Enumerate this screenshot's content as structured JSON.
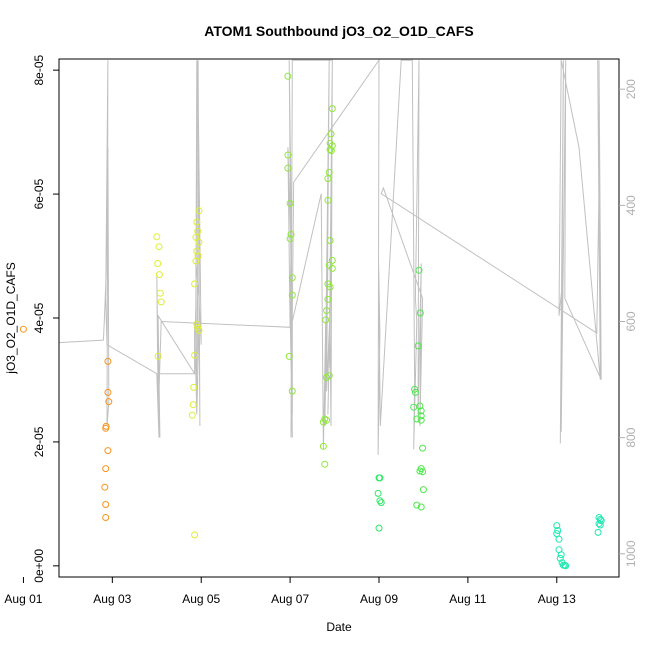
{
  "chart_data": {
    "type": "scatter",
    "title": "ATOM1 Southbound jO3_O2_O1D_CAFS",
    "xlabel": "Date",
    "ylabel": "jO3_O2_O1D_CAFS",
    "x_ticks": [
      "Aug 01",
      "Aug 03",
      "Aug 05",
      "Aug 07",
      "Aug 09",
      "Aug 11",
      "Aug 13"
    ],
    "y_ticks": [
      "0e+00",
      "2e-05",
      "4e-05",
      "6e-05",
      "8e-05"
    ],
    "y2_ticks": [
      "200",
      "400",
      "600",
      "800",
      "1000"
    ],
    "xlim_days": [
      0.8,
      13.4
    ],
    "ylim": [
      -1.8e-06,
      8.18e-05
    ],
    "y2lim": [
      1040,
      148
    ],
    "grid": false,
    "points": [
      {
        "x": 0.0,
        "y": 3.82e-05,
        "color": "#f7941d"
      },
      {
        "x": 1.9,
        "y": 3.3e-05,
        "color": "#f7941d"
      },
      {
        "x": 1.9,
        "y": 2.8e-05,
        "color": "#f7941d"
      },
      {
        "x": 1.92,
        "y": 2.65e-05,
        "color": "#f7941d"
      },
      {
        "x": 1.86,
        "y": 2.25e-05,
        "color": "#f7941d"
      },
      {
        "x": 1.85,
        "y": 2.22e-05,
        "color": "#f7941d"
      },
      {
        "x": 1.9,
        "y": 1.86e-05,
        "color": "#f7941d"
      },
      {
        "x": 1.85,
        "y": 1.57e-05,
        "color": "#f7941d"
      },
      {
        "x": 1.83,
        "y": 1.27e-05,
        "color": "#f7941d"
      },
      {
        "x": 1.85,
        "y": 9.9e-06,
        "color": "#f7941d"
      },
      {
        "x": 1.85,
        "y": 7.8e-06,
        "color": "#f7941d"
      },
      {
        "x": 3.0,
        "y": 5.31e-05,
        "color": "#ddee33"
      },
      {
        "x": 3.05,
        "y": 5.15e-05,
        "color": "#ddee33"
      },
      {
        "x": 3.02,
        "y": 4.88e-05,
        "color": "#ddee33"
      },
      {
        "x": 3.06,
        "y": 4.7e-05,
        "color": "#ddee33"
      },
      {
        "x": 3.08,
        "y": 4.4e-05,
        "color": "#ddee33"
      },
      {
        "x": 3.1,
        "y": 4.26e-05,
        "color": "#ddee33"
      },
      {
        "x": 3.03,
        "y": 3.38e-05,
        "color": "#ddee33"
      },
      {
        "x": 3.95,
        "y": 5.73e-05,
        "color": "#ddee33"
      },
      {
        "x": 3.9,
        "y": 5.55e-05,
        "color": "#ddee33"
      },
      {
        "x": 3.92,
        "y": 5.4e-05,
        "color": "#ddee33"
      },
      {
        "x": 3.88,
        "y": 5.3e-05,
        "color": "#ddee33"
      },
      {
        "x": 3.95,
        "y": 5.22e-05,
        "color": "#ddee33"
      },
      {
        "x": 3.9,
        "y": 5.08e-05,
        "color": "#ddee33"
      },
      {
        "x": 3.93,
        "y": 5e-05,
        "color": "#ddee33"
      },
      {
        "x": 3.88,
        "y": 4.92e-05,
        "color": "#ddee33"
      },
      {
        "x": 3.85,
        "y": 4.55e-05,
        "color": "#ddee33"
      },
      {
        "x": 3.9,
        "y": 3.9e-05,
        "color": "#ddee33"
      },
      {
        "x": 3.92,
        "y": 3.85e-05,
        "color": "#ddee33"
      },
      {
        "x": 3.95,
        "y": 3.8e-05,
        "color": "#ddee33"
      },
      {
        "x": 3.85,
        "y": 3.4e-05,
        "color": "#ddee33"
      },
      {
        "x": 3.83,
        "y": 2.88e-05,
        "color": "#ddee33"
      },
      {
        "x": 3.82,
        "y": 2.6e-05,
        "color": "#ddee33"
      },
      {
        "x": 3.8,
        "y": 2.43e-05,
        "color": "#ddee33"
      },
      {
        "x": 3.85,
        "y": 5e-06,
        "color": "#ddee33"
      },
      {
        "x": 5.95,
        "y": 7.9e-05,
        "color": "#8ee83a"
      },
      {
        "x": 5.95,
        "y": 6.63e-05,
        "color": "#8ee83a"
      },
      {
        "x": 5.95,
        "y": 6.42e-05,
        "color": "#8ee83a"
      },
      {
        "x": 6.0,
        "y": 5.85e-05,
        "color": "#8ee83a"
      },
      {
        "x": 6.02,
        "y": 5.35e-05,
        "color": "#8ee83a"
      },
      {
        "x": 6.0,
        "y": 5.28e-05,
        "color": "#8ee83a"
      },
      {
        "x": 6.05,
        "y": 4.65e-05,
        "color": "#8ee83a"
      },
      {
        "x": 6.05,
        "y": 4.37e-05,
        "color": "#8ee83a"
      },
      {
        "x": 5.98,
        "y": 3.38e-05,
        "color": "#8ee83a"
      },
      {
        "x": 6.05,
        "y": 2.82e-05,
        "color": "#8ee83a"
      },
      {
        "x": 6.95,
        "y": 7.38e-05,
        "color": "#8ee83a"
      },
      {
        "x": 6.92,
        "y": 6.97e-05,
        "color": "#8ee83a"
      },
      {
        "x": 6.9,
        "y": 6.82e-05,
        "color": "#8ee83a"
      },
      {
        "x": 6.95,
        "y": 6.78e-05,
        "color": "#8ee83a"
      },
      {
        "x": 6.9,
        "y": 6.72e-05,
        "color": "#8ee83a"
      },
      {
        "x": 6.93,
        "y": 6.7e-05,
        "color": "#8ee83a"
      },
      {
        "x": 6.88,
        "y": 6.35e-05,
        "color": "#8ee83a"
      },
      {
        "x": 6.85,
        "y": 6.25e-05,
        "color": "#8ee83a"
      },
      {
        "x": 6.85,
        "y": 5.9e-05,
        "color": "#8ee83a"
      },
      {
        "x": 6.9,
        "y": 5.25e-05,
        "color": "#8ee83a"
      },
      {
        "x": 6.95,
        "y": 4.93e-05,
        "color": "#8ee83a"
      },
      {
        "x": 6.88,
        "y": 4.85e-05,
        "color": "#8ee83a"
      },
      {
        "x": 6.95,
        "y": 4.8e-05,
        "color": "#8ee83a"
      },
      {
        "x": 6.85,
        "y": 4.55e-05,
        "color": "#8ee83a"
      },
      {
        "x": 6.9,
        "y": 4.5e-05,
        "color": "#8ee83a"
      },
      {
        "x": 6.85,
        "y": 4.3e-05,
        "color": "#8ee83a"
      },
      {
        "x": 6.82,
        "y": 4.12e-05,
        "color": "#8ee83a"
      },
      {
        "x": 6.8,
        "y": 3.97e-05,
        "color": "#8ee83a"
      },
      {
        "x": 6.88,
        "y": 3.07e-05,
        "color": "#8ee83a"
      },
      {
        "x": 6.82,
        "y": 3.04e-05,
        "color": "#8ee83a"
      },
      {
        "x": 6.78,
        "y": 2.37e-05,
        "color": "#8ee83a"
      },
      {
        "x": 6.82,
        "y": 2.35e-05,
        "color": "#8ee83a"
      },
      {
        "x": 6.75,
        "y": 2.32e-05,
        "color": "#8ee83a"
      },
      {
        "x": 6.75,
        "y": 1.93e-05,
        "color": "#8ee83a"
      },
      {
        "x": 6.78,
        "y": 1.64e-05,
        "color": "#8ee83a"
      },
      {
        "x": 8.9,
        "y": 4.77e-05,
        "color": "#4de84a"
      },
      {
        "x": 8.93,
        "y": 4.08e-05,
        "color": "#4de84a"
      },
      {
        "x": 8.88,
        "y": 3.55e-05,
        "color": "#4de84a"
      },
      {
        "x": 8.8,
        "y": 2.85e-05,
        "color": "#4de84a"
      },
      {
        "x": 8.82,
        "y": 2.8e-05,
        "color": "#4de84a"
      },
      {
        "x": 8.78,
        "y": 2.56e-05,
        "color": "#4de84a"
      },
      {
        "x": 8.92,
        "y": 2.58e-05,
        "color": "#4de84a"
      },
      {
        "x": 8.95,
        "y": 2.5e-05,
        "color": "#4de84a"
      },
      {
        "x": 8.95,
        "y": 2.42e-05,
        "color": "#4de84a"
      },
      {
        "x": 8.85,
        "y": 2.37e-05,
        "color": "#4de84a"
      },
      {
        "x": 8.95,
        "y": 2.35e-05,
        "color": "#4de84a"
      },
      {
        "x": 8.98,
        "y": 1.9e-05,
        "color": "#4de84a"
      },
      {
        "x": 8.95,
        "y": 1.57e-05,
        "color": "#4de84a"
      },
      {
        "x": 8.92,
        "y": 1.53e-05,
        "color": "#4de84a"
      },
      {
        "x": 8.98,
        "y": 1.52e-05,
        "color": "#4de84a"
      },
      {
        "x": 9.0,
        "y": 1.23e-05,
        "color": "#4de84a"
      },
      {
        "x": 8.85,
        "y": 9.8e-06,
        "color": "#4de84a"
      },
      {
        "x": 8.95,
        "y": 9.5e-06,
        "color": "#4de84a"
      },
      {
        "x": 8.0,
        "y": 1.42e-05,
        "color": "#2ee865"
      },
      {
        "x": 8.02,
        "y": 1.42e-05,
        "color": "#2ee865"
      },
      {
        "x": 7.98,
        "y": 1.17e-05,
        "color": "#2ee865"
      },
      {
        "x": 8.02,
        "y": 1.05e-05,
        "color": "#2ee865"
      },
      {
        "x": 8.05,
        "y": 1.02e-05,
        "color": "#2ee865"
      },
      {
        "x": 8.0,
        "y": 6.1e-06,
        "color": "#2ee865"
      },
      {
        "x": 12.0,
        "y": 6.5e-06,
        "color": "#1de8b0"
      },
      {
        "x": 12.02,
        "y": 5.7e-06,
        "color": "#1de8b0"
      },
      {
        "x": 12.0,
        "y": 5.2e-06,
        "color": "#1de8b0"
      },
      {
        "x": 12.05,
        "y": 4.3e-06,
        "color": "#1de8b0"
      },
      {
        "x": 12.05,
        "y": 2.6e-06,
        "color": "#1de8b0"
      },
      {
        "x": 12.1,
        "y": 1.8e-06,
        "color": "#1de8b0"
      },
      {
        "x": 12.08,
        "y": 1.2e-06,
        "color": "#1de8b0"
      },
      {
        "x": 12.12,
        "y": 5e-07,
        "color": "#1de8b0"
      },
      {
        "x": 12.15,
        "y": 1e-07,
        "color": "#1de8b0"
      },
      {
        "x": 12.18,
        "y": 1e-07,
        "color": "#1de8b0"
      },
      {
        "x": 12.2,
        "y": 0.0,
        "color": "#1de8b0"
      },
      {
        "x": 12.95,
        "y": 7.8e-06,
        "color": "#1de8b0"
      },
      {
        "x": 12.98,
        "y": 7.5e-06,
        "color": "#1de8b0"
      },
      {
        "x": 13.0,
        "y": 7.3e-06,
        "color": "#1de8b0"
      },
      {
        "x": 12.95,
        "y": 6.8e-06,
        "color": "#1de8b0"
      },
      {
        "x": 12.98,
        "y": 6.6e-06,
        "color": "#1de8b0"
      },
      {
        "x": 12.93,
        "y": 5.4e-06,
        "color": "#1de8b0"
      }
    ],
    "line_series": {
      "name": "",
      "color": "#c0c0c0",
      "x": [
        0.0,
        1.8,
        1.82,
        1.84,
        1.86,
        1.9,
        1.92,
        1.88,
        1.9,
        1.85,
        1.88,
        3.0,
        3.05,
        3.0,
        3.02,
        3.05,
        3.03,
        3.85,
        3.88,
        3.9,
        3.92,
        3.9,
        3.95,
        3.93,
        3.97,
        3.95,
        4.0,
        3.92,
        3.95,
        3.88,
        3.9,
        3.85,
        3.85,
        3.03,
        3.07,
        3.05,
        3.1,
        6.0,
        5.95,
        6.02,
        6.0,
        6.05,
        5.98,
        6.03,
        6.0,
        6.05,
        6.05,
        6.7,
        6.75,
        6.8,
        6.78,
        6.85,
        6.8,
        6.88,
        6.82,
        6.9,
        6.85,
        6.92,
        6.88,
        6.95,
        6.9,
        6.92,
        6.95,
        6.5,
        6.05,
        6.02,
        6.08,
        8.0,
        7.98,
        8.02,
        7.99,
        8.03,
        8.5,
        8.75,
        8.8,
        8.78,
        8.85,
        8.82,
        8.9,
        8.88,
        8.95,
        8.92,
        8.98,
        8.1,
        8.05,
        12.9,
        12.95,
        12.92,
        12.98,
        12.5,
        12.1,
        12.05,
        12.12,
        12.08,
        12.15,
        12.1,
        12.2,
        12.18,
        13.0,
        12.95,
        12.98
      ],
      "y2": [
        640,
        632,
        600,
        560,
        520,
        300,
        740,
        780,
        150,
        560,
        640,
        690,
        800,
        520,
        680,
        760,
        690,
        690,
        560,
        150,
        700,
        760,
        600,
        150,
        780,
        560,
        640,
        150,
        560,
        500,
        760,
        600,
        690,
        590,
        800,
        720,
        600,
        610,
        300,
        480,
        580,
        800,
        150,
        450,
        560,
        760,
        600,
        380,
        820,
        600,
        780,
        500,
        650,
        150,
        720,
        580,
        760,
        500,
        680,
        150,
        620,
        780,
        150,
        150,
        150,
        800,
        360,
        150,
        830,
        620,
        500,
        780,
        150,
        150,
        700,
        820,
        600,
        560,
        150,
        760,
        500,
        780,
        560,
        370,
        380,
        620,
        370,
        150,
        700,
        300,
        150,
        590,
        540,
        810,
        150,
        790,
        150,
        560,
        700,
        150,
        590
      ]
    }
  }
}
